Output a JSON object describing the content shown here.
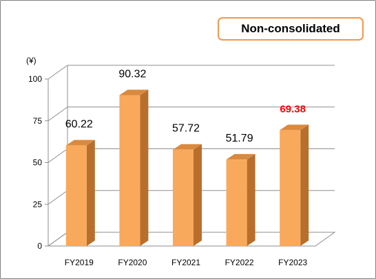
{
  "badge": {
    "label": "Non-consolidated"
  },
  "chart_data": {
    "type": "bar",
    "title": "",
    "ylabel": "(¥)",
    "xlabel": "",
    "categories": [
      "FY2019",
      "FY2020",
      "FY2021",
      "FY2022",
      "FY2023"
    ],
    "values": [
      60.22,
      90.32,
      57.72,
      51.79,
      69.38
    ],
    "data_labels": [
      "60.22",
      "90.32",
      "57.72",
      "51.79",
      "69.38"
    ],
    "highlight_index": 4,
    "highlight_color": "#ff0000",
    "ylim": [
      0,
      100
    ],
    "yticks": [
      0,
      25,
      50,
      75,
      100
    ],
    "grid": true,
    "bar_color": "#f9a95b",
    "bar_top_color": "#d98a3e",
    "bar_side_color": "#b86f2c",
    "style": "3d-column"
  }
}
